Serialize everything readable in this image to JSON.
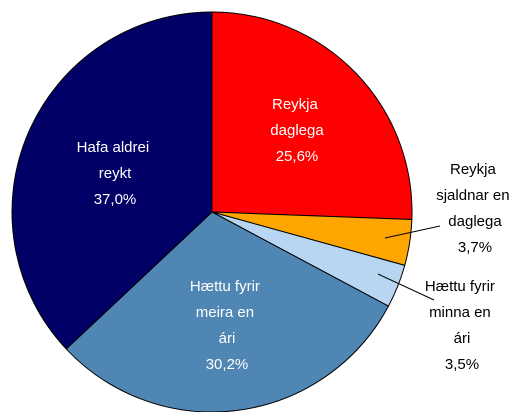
{
  "chart_data": {
    "type": "pie",
    "categories": [
      "Reykja daglega",
      "Reykja sjaldnar en daglega",
      "Hættu fyrir minna en ári",
      "Hættu fyrir meira en ári",
      "Hafa aldrei reykt"
    ],
    "values": [
      25.6,
      3.7,
      3.5,
      30.2,
      37.0
    ],
    "value_labels": [
      "25,6%",
      "3,7%",
      "3,5%",
      "30,2%",
      "37,0%"
    ],
    "colors": [
      "#ff0000",
      "#ffa500",
      "#b8d6f2",
      "#4f86b4",
      "#000066"
    ]
  }
}
